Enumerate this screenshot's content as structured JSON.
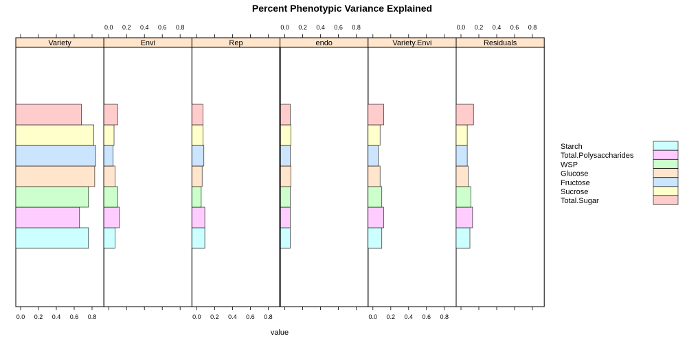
{
  "chart_data": {
    "type": "bar",
    "orientation": "horizontal",
    "title": "Percent Phenotypic Variance Explained",
    "xlabel": "value",
    "ylabel": "",
    "xlim": [
      0,
      0.9
    ],
    "xticks": [
      "0.0",
      "0.2",
      "0.4",
      "0.6",
      "0.8"
    ],
    "tick_sides": [
      "bottom",
      "top",
      "bottom",
      "top",
      "bottom",
      "top"
    ],
    "panels": [
      "Variety",
      "Envi",
      "Rep",
      "endo",
      "Variety.Envi",
      "Residuals"
    ],
    "categories": [
      "Starch",
      "Total.Polysaccharides",
      "WSP",
      "Glucose",
      "Fructose",
      "Sucrose",
      "Total.Sugar"
    ],
    "colors": [
      "#CCFFFF",
      "#FFCCFF",
      "#CCFFCC",
      "#FFE5CC",
      "#CCE5FF",
      "#FFFFCC",
      "#FFCCCC"
    ],
    "strip_color": "#FFE5CC",
    "series": [
      {
        "name": "Variety",
        "values": [
          0.76,
          0.66,
          0.76,
          0.83,
          0.84,
          0.82,
          0.68
        ]
      },
      {
        "name": "Envi",
        "values": [
          0.07,
          0.12,
          0.1,
          0.07,
          0.05,
          0.06,
          0.1
        ]
      },
      {
        "name": "Rep",
        "values": [
          0.09,
          0.09,
          0.05,
          0.06,
          0.08,
          0.07,
          0.07
        ]
      },
      {
        "name": "endo",
        "values": [
          0.06,
          0.06,
          0.06,
          0.07,
          0.06,
          0.07,
          0.06
        ]
      },
      {
        "name": "Variety.Envi",
        "values": [
          0.1,
          0.12,
          0.1,
          0.08,
          0.06,
          0.08,
          0.12
        ]
      },
      {
        "name": "Residuals",
        "values": [
          0.1,
          0.13,
          0.11,
          0.08,
          0.07,
          0.07,
          0.14
        ]
      }
    ],
    "legend": {
      "position": "right",
      "entries": [
        "Starch",
        "Total.Polysaccharides",
        "WSP",
        "Glucose",
        "Fructose",
        "Sucrose",
        "Total.Sugar"
      ]
    },
    "grid": false
  }
}
